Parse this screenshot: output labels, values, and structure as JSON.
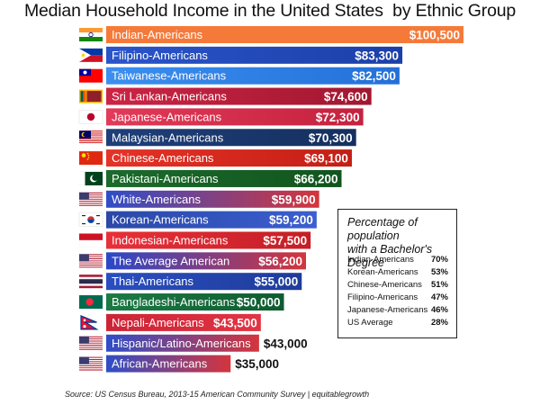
{
  "title": "Median Household Income in the United States  by Ethnic Group",
  "source": "Source: US Census Bureau, 2013-15 American Community Survey | equitablegrowth",
  "chart_data": {
    "type": "bar",
    "orientation": "horizontal",
    "title": "Median Household Income in the United States  by Ethnic Group",
    "categories": [
      "Indian-Americans",
      "Filipino-Americans",
      "Taiwanese-Americans",
      "Sri Lankan-Americans",
      "Japanese-Americans",
      "Malaysian-Americans",
      "Chinese-Americans",
      "Pakistani-Americans",
      "White-Americans",
      "Korean-Americans",
      "Indonesian-Americans",
      "The Average American",
      "Thai-Americans",
      "Bangladeshi-Americans",
      "Nepali-Americans",
      "Hispanic/Latino-Americans",
      "African-Americans"
    ],
    "values": [
      100500,
      83300,
      82500,
      74600,
      72300,
      70300,
      69100,
      66200,
      59900,
      59200,
      57500,
      56200,
      55000,
      50000,
      43500,
      43000,
      35000
    ],
    "value_labels": [
      "$100,500",
      "$83,300",
      "$82,500",
      "$74,600",
      "$72,300",
      "$70,300",
      "$69,100",
      "$66,200",
      "$59,900",
      "$59,200",
      "$57,500",
      "$56,200",
      "$55,000",
      "$50,000",
      "$43,500",
      "$43,000",
      "$35,000"
    ],
    "value_label_position": [
      "inside",
      "inside",
      "inside",
      "inside",
      "inside",
      "inside",
      "inside",
      "inside",
      "inside",
      "inside",
      "inside",
      "inside",
      "inside",
      "inside",
      "inside",
      "outside",
      "outside"
    ],
    "bar_colors": [
      [
        "#f57a3a",
        "#f57a3a"
      ],
      [
        "#2a55c9",
        "#1c3fa8"
      ],
      [
        "#3b8ff0",
        "#2470d8"
      ],
      [
        "#cc2445",
        "#a01830"
      ],
      [
        "#e23a58",
        "#c4223e"
      ],
      [
        "#1f3f7a",
        "#15305f"
      ],
      [
        "#e53327",
        "#c41e15"
      ],
      [
        "#1c6b2c",
        "#11551e"
      ],
      [
        "#2f4ec8",
        "#d4353c"
      ],
      [
        "#2a48a8",
        "#3b5fd0"
      ],
      [
        "#e8303a",
        "#c41e26"
      ],
      [
        "#2a48c8",
        "#d4353c"
      ],
      [
        "#2a4ec0",
        "#1f3c9a"
      ],
      [
        "#1c7a45",
        "#0e5c30"
      ],
      [
        "#cc2436",
        "#e23444"
      ],
      [
        "#2f4ec8",
        "#d4353c"
      ],
      [
        "#2f4ec8",
        "#d4353c"
      ]
    ],
    "flags": [
      "india-flag-icon",
      "philippines-flag-icon",
      "taiwan-flag-icon",
      "sri-lanka-flag-icon",
      "japan-flag-icon",
      "malaysia-flag-icon",
      "china-flag-icon",
      "pakistan-flag-icon",
      "usa-flag-icon",
      "south-korea-flag-icon",
      "indonesia-flag-icon",
      "usa-flag-icon",
      "thailand-flag-icon",
      "bangladesh-flag-icon",
      "nepal-flag-icon",
      "usa-flag-icon",
      "usa-flag-icon"
    ],
    "xlim": [
      0,
      100500
    ],
    "grid": false,
    "legend": false
  },
  "inset_table": {
    "title_line1": "Percentage of population",
    "title_line2": "with a Bachelor's Degree",
    "rows": [
      {
        "name": "Indian-Americans",
        "value": "70%"
      },
      {
        "name": "Korean-Americans",
        "value": "53%"
      },
      {
        "name": "Chinese-Americans",
        "value": "51%"
      },
      {
        "name": "Filipino-Americans",
        "value": "47%"
      },
      {
        "name": "Japanese-Americans",
        "value": "46%"
      },
      {
        "name": "US Average",
        "value": "28%"
      }
    ]
  }
}
